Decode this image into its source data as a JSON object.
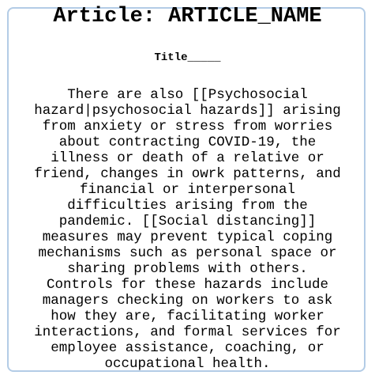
{
  "document": {
    "heading": "Article: ARTICLE_NAME",
    "title_label": "Title_____",
    "body_lines": [
      "There are also [[Psychosocial",
      "hazard|psychosocial hazards]] arising",
      "from anxiety or stress from worries",
      "about contracting COVID-19, the",
      "illness or death of a relative or",
      "friend, changes in owrk patterns, and",
      "financial or interpersonal",
      "difficulties arising from the",
      "pandemic. [[Social distancing]]",
      "measures may prevent typical coping",
      "mechanisms such as personal space or",
      "sharing problems with others.",
      "Controls for these hazards include",
      "managers checking on workers to ask",
      "how they are, facilitating worker",
      "interactions, and formal services for",
      "employee assistance, coaching, or",
      "occupational health."
    ]
  },
  "colors": {
    "border": "#b3cce6",
    "text": "#000000",
    "background": "#ffffff"
  }
}
